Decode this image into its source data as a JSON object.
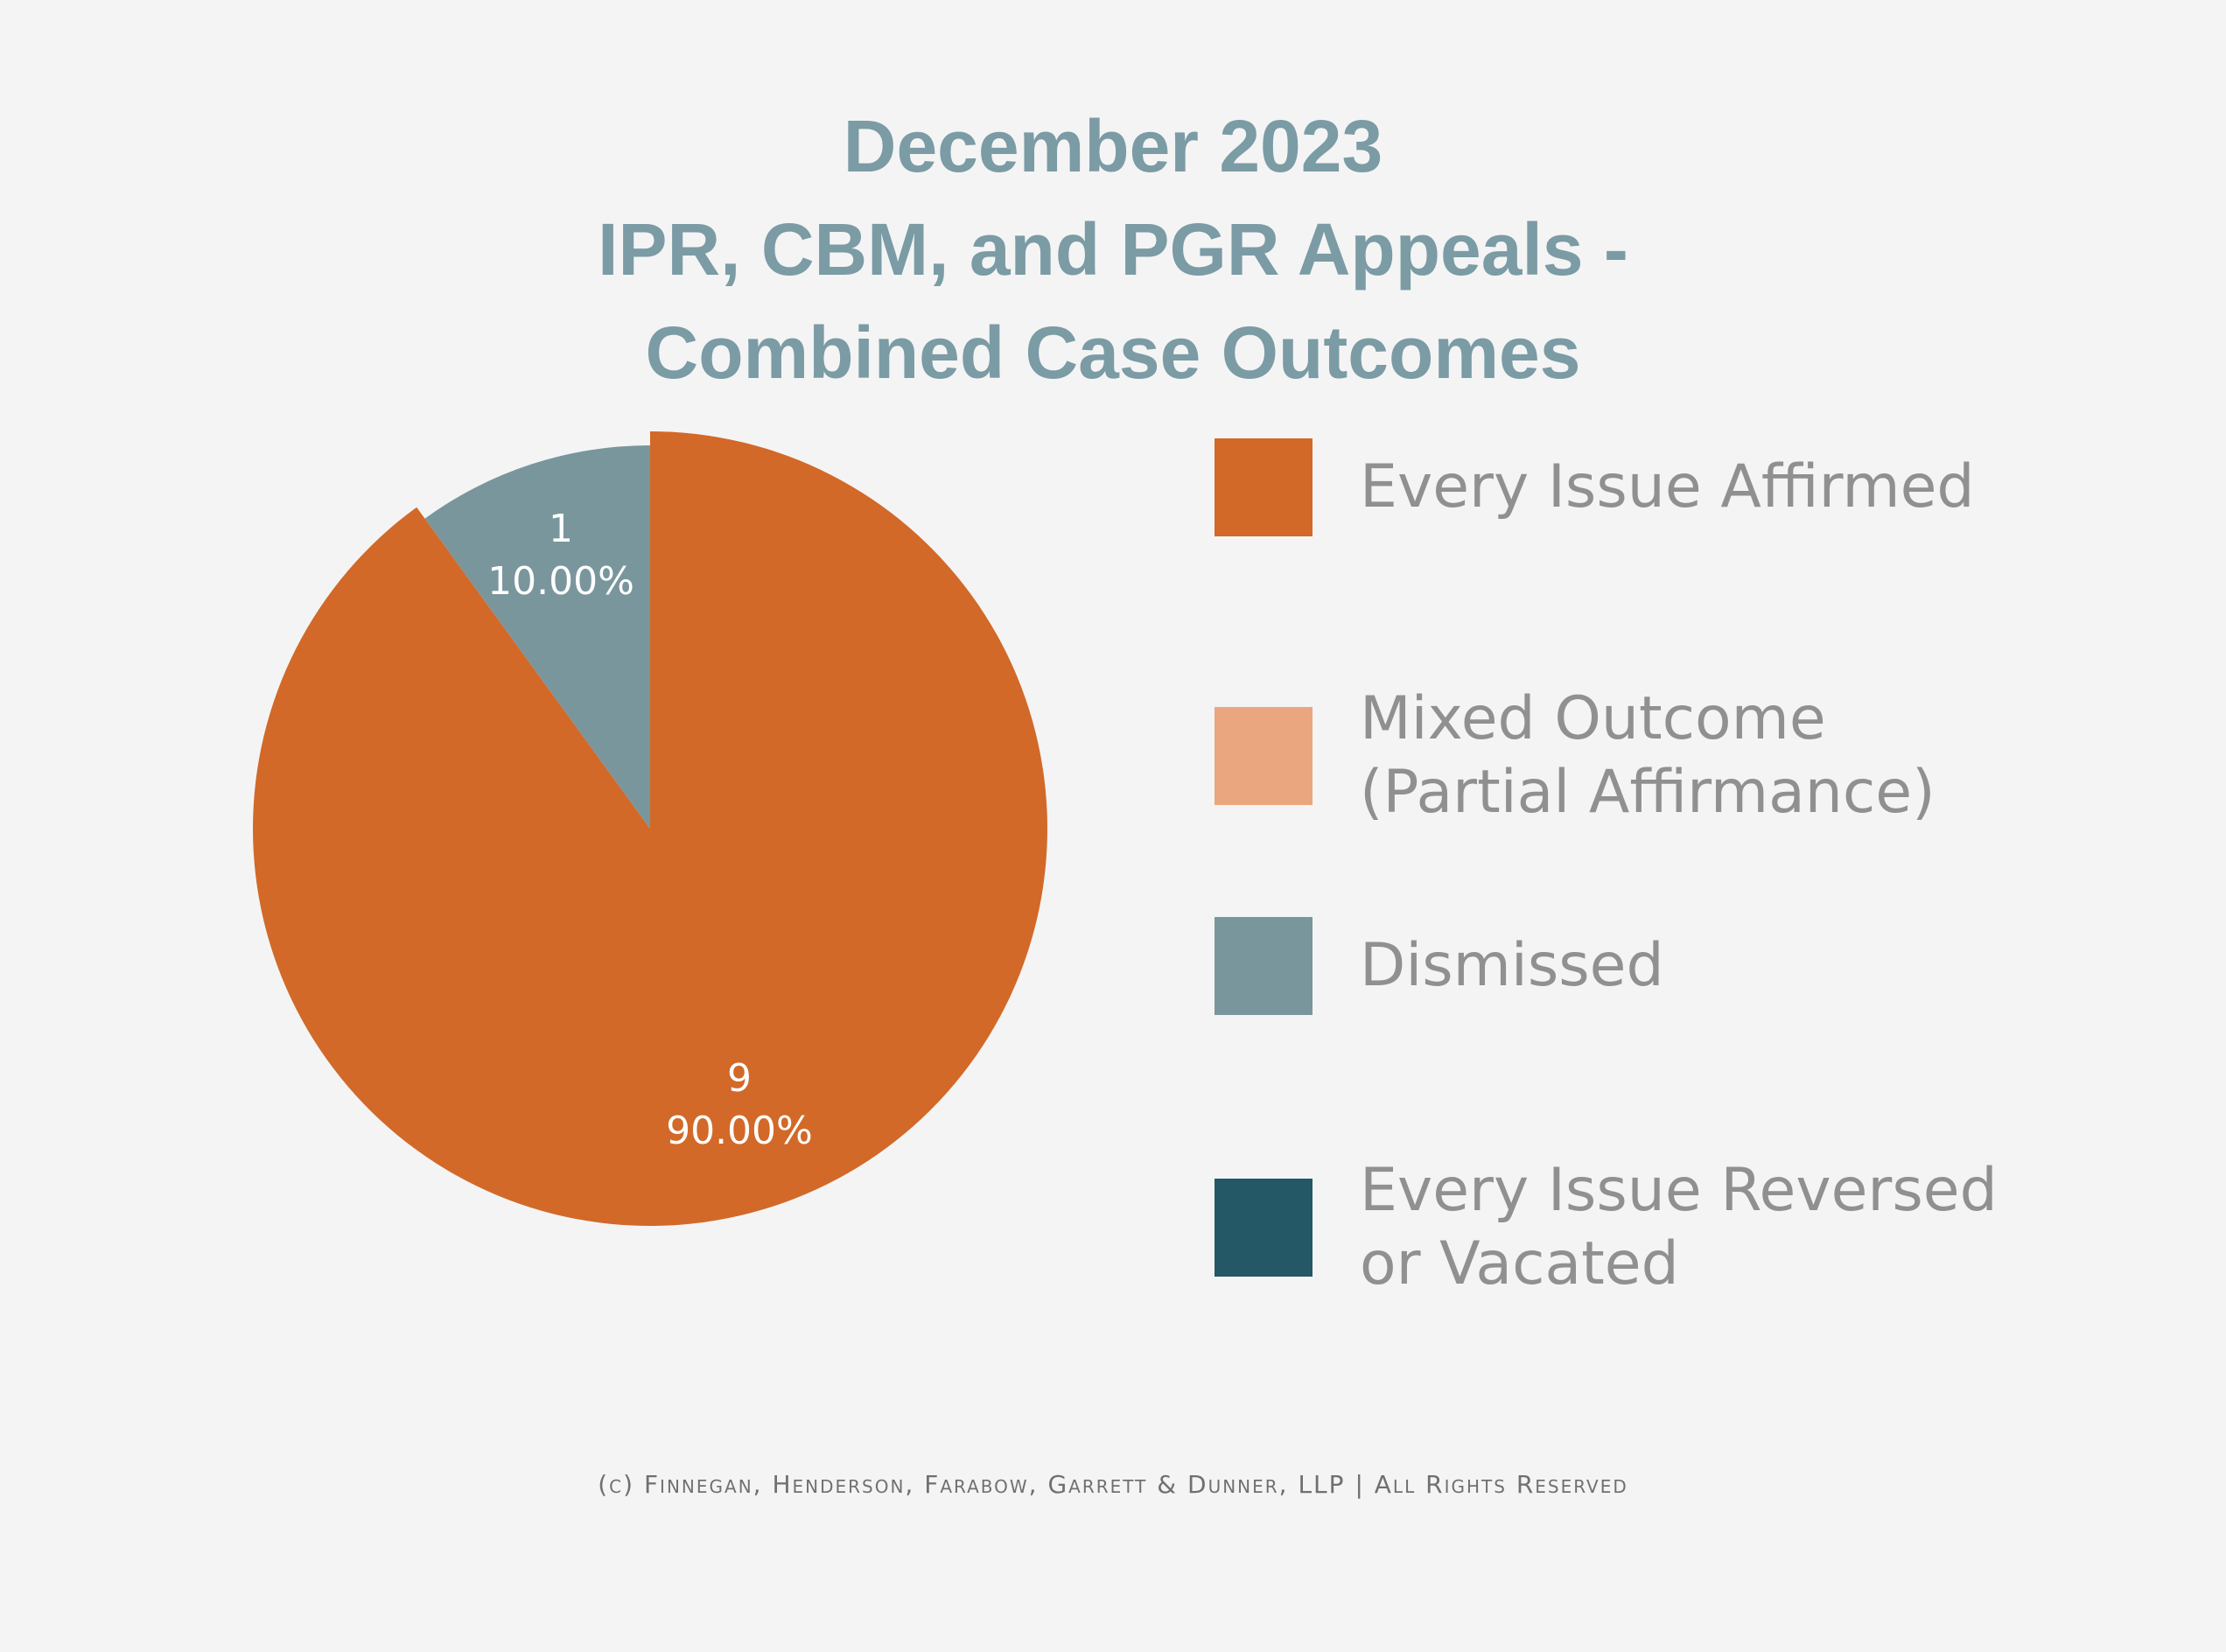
{
  "chart_data": {
    "type": "pie",
    "title_lines": [
      "December 2023",
      "IPR, CBM, and PGR Appeals -",
      "Combined Case Outcomes"
    ],
    "legend_position": "right",
    "categories": [
      "Every Issue Affirmed",
      "Mixed Outcome (Partial Affirmance)",
      "Dismissed",
      "Every Issue Reversed or Vacated"
    ],
    "legend_lines": [
      [
        "Every Issue Affirmed"
      ],
      [
        "Mixed Outcome",
        "(Partial Affirmance)"
      ],
      [
        "Dismissed"
      ],
      [
        "Every Issue Reversed",
        "or Vacated"
      ]
    ],
    "values": [
      9,
      0,
      1,
      0
    ],
    "percent_labels": [
      "90.00%",
      "",
      "10.00%",
      ""
    ],
    "count_labels": [
      "9",
      "",
      "1",
      ""
    ],
    "colors": [
      "#d26928",
      "#eaa67f",
      "#7a969d",
      "#245867"
    ]
  },
  "footer": "(c) Finnegan, Henderson, Farabow, Garrett & Dunner, LLP | All Rights Reserved"
}
